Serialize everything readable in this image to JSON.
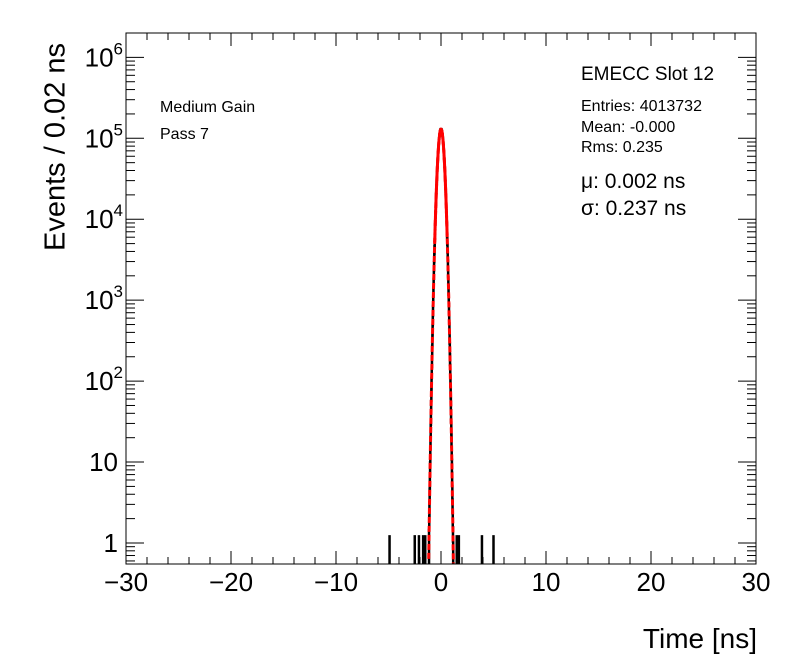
{
  "chart_data": {
    "type": "histogram",
    "xlabel": "Time [ns]",
    "ylabel": "Events / 0.02 ns",
    "xlim": [
      -30,
      30
    ],
    "ylim": [
      0.55,
      2000000
    ],
    "ylog": true,
    "x_ticks": [
      "−30",
      "−20",
      "−10",
      "0",
      "10",
      "20",
      "30"
    ],
    "x_tick_values": [
      -30,
      -20,
      -10,
      0,
      10,
      20,
      30
    ],
    "y_ticks": [
      {
        "base": "1",
        "exp": "",
        "value": 1
      },
      {
        "base": "10",
        "exp": "",
        "value": 10
      },
      {
        "base": "10",
        "exp": "2",
        "value": 100
      },
      {
        "base": "10",
        "exp": "3",
        "value": 1000
      },
      {
        "base": "10",
        "exp": "4",
        "value": 10000
      },
      {
        "base": "10",
        "exp": "5",
        "value": 100000
      },
      {
        "base": "10",
        "exp": "6",
        "value": 1000000
      }
    ],
    "histogram_peak": {
      "mean": 0.002,
      "sigma": 0.237,
      "amplitude": 130000
    },
    "outlier_bins": [
      {
        "x": -4.9,
        "y": 1
      },
      {
        "x": -2.5,
        "y": 1
      },
      {
        "x": -2.1,
        "y": 1
      },
      {
        "x": -1.7,
        "y": 1
      },
      {
        "x": -1.5,
        "y": 1
      },
      {
        "x": 1.5,
        "y": 1
      },
      {
        "x": 1.7,
        "y": 1
      },
      {
        "x": 3.9,
        "y": 1
      },
      {
        "x": 5.0,
        "y": 1
      }
    ],
    "fit": {
      "function": "gaussian",
      "mean": 0.002,
      "sigma": 0.237,
      "amplitude": 130000
    }
  },
  "colors": {
    "histogram": "#000000",
    "fit": "#ff0000",
    "axes": "#000000"
  },
  "annotations": {
    "gain": "Medium Gain",
    "pass": "Pass 7",
    "title": "EMECC Slot 12",
    "entries": "Entries: 4013732",
    "mean": "Mean: -0.000",
    "rms": "Rms: 0.235",
    "mu": "μ: 0.002 ns",
    "sigma": "σ: 0.237 ns"
  }
}
